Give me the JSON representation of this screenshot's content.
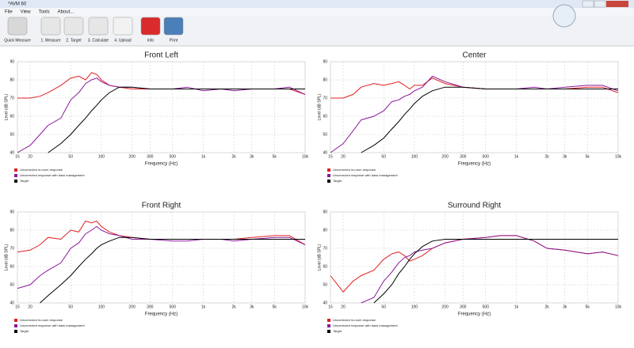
{
  "window": {
    "title": "*AVM 60"
  },
  "menu": [
    "File",
    "View",
    "Tools",
    "About..."
  ],
  "toolbar": [
    "Quick Measure",
    "1. Measure",
    "2. Target",
    "3. Calculate",
    "4. Upload",
    "Info",
    "Print"
  ],
  "chart_data": [
    {
      "type": "line",
      "title": "Front Left",
      "xlabel": "Frequency (Hz)",
      "ylabel": "Level (dB SPL)",
      "log_x": true,
      "grid": true,
      "xlim": [
        15,
        10000
      ],
      "xticks": [
        15,
        20,
        50,
        100,
        200,
        300,
        500,
        {
          "value": 1000,
          "label": "1k"
        },
        {
          "value": 2000,
          "label": "2k"
        },
        {
          "value": 3000,
          "label": "3k"
        },
        {
          "value": 5000,
          "label": "5k"
        },
        {
          "value": 10000,
          "label": "10k"
        }
      ],
      "ylim": [
        40,
        90
      ],
      "yticks": [
        40,
        50,
        60,
        70,
        80,
        90
      ],
      "x": [
        15,
        20,
        25,
        30,
        40,
        50,
        60,
        70,
        80,
        90,
        100,
        120,
        150,
        200,
        300,
        500,
        700,
        1000,
        1500,
        2000,
        3000,
        5000,
        7000,
        10000
      ],
      "series": [
        {
          "name": "Uncorrected in-room response",
          "color": "#e02020",
          "values": [
            70,
            70,
            71,
            73,
            77,
            81,
            82,
            80,
            84,
            83,
            80,
            77,
            76,
            75,
            75,
            75,
            75,
            75,
            75,
            75,
            75,
            75,
            75,
            72
          ]
        },
        {
          "name": "Uncorrected response with bass management",
          "color": "#8a1a9a",
          "values": [
            40,
            44,
            50,
            55,
            59,
            69,
            73,
            78,
            80,
            81,
            79,
            77,
            76,
            76,
            75,
            75,
            76,
            74,
            75,
            74,
            75,
            75,
            76,
            72
          ]
        },
        {
          "name": "Target",
          "color": "#000000",
          "values": [
            null,
            null,
            null,
            40,
            45,
            50,
            55,
            59,
            63,
            66,
            69,
            73,
            76,
            76,
            75,
            75,
            75,
            75,
            75,
            75,
            75,
            75,
            75,
            75
          ]
        }
      ]
    },
    {
      "type": "line",
      "title": "Center",
      "xlabel": "Frequency (Hz)",
      "ylabel": "Level (dB SPL)",
      "log_x": true,
      "grid": true,
      "xlim": [
        15,
        10000
      ],
      "xticks": [
        15,
        20,
        50,
        100,
        200,
        300,
        500,
        {
          "value": 1000,
          "label": "1k"
        },
        {
          "value": 2000,
          "label": "2k"
        },
        {
          "value": 3000,
          "label": "3k"
        },
        {
          "value": 5000,
          "label": "5k"
        },
        {
          "value": 10000,
          "label": "10k"
        }
      ],
      "ylim": [
        40,
        90
      ],
      "yticks": [
        40,
        50,
        60,
        70,
        80,
        90
      ],
      "x": [
        15,
        20,
        25,
        30,
        40,
        50,
        60,
        70,
        80,
        90,
        100,
        120,
        150,
        200,
        300,
        500,
        700,
        1000,
        1500,
        2000,
        3000,
        5000,
        7000,
        10000
      ],
      "series": [
        {
          "name": "Uncorrected in-room response",
          "color": "#e02020",
          "values": [
            70,
            70,
            72,
            76,
            78,
            77,
            78,
            79,
            77,
            75,
            77,
            77,
            81,
            78,
            76,
            75,
            75,
            75,
            75,
            75,
            75,
            76,
            76,
            73
          ]
        },
        {
          "name": "Uncorrected response with bass management",
          "color": "#8a1a9a",
          "values": [
            40,
            45,
            52,
            58,
            60,
            63,
            68,
            69,
            71,
            72,
            74,
            76,
            82,
            79,
            76,
            75,
            75,
            75,
            76,
            75,
            76,
            77,
            77,
            74
          ]
        },
        {
          "name": "Target",
          "color": "#000000",
          "values": [
            null,
            null,
            null,
            40,
            44,
            48,
            53,
            57,
            61,
            64,
            67,
            71,
            74,
            76,
            76,
            75,
            75,
            75,
            75,
            75,
            75,
            75,
            75,
            75
          ]
        }
      ]
    },
    {
      "type": "line",
      "title": "Front Right",
      "xlabel": "Frequency (Hz)",
      "ylabel": "Level (dB SPL)",
      "log_x": true,
      "grid": true,
      "xlim": [
        15,
        10000
      ],
      "xticks": [
        15,
        20,
        50,
        100,
        200,
        300,
        500,
        {
          "value": 1000,
          "label": "1k"
        },
        {
          "value": 2000,
          "label": "2k"
        },
        {
          "value": 3000,
          "label": "3k"
        },
        {
          "value": 5000,
          "label": "5k"
        },
        {
          "value": 10000,
          "label": "10k"
        }
      ],
      "ylim": [
        40,
        90
      ],
      "yticks": [
        40,
        50,
        60,
        70,
        80,
        90
      ],
      "x": [
        15,
        20,
        25,
        30,
        40,
        50,
        60,
        70,
        80,
        90,
        100,
        120,
        150,
        200,
        300,
        500,
        700,
        1000,
        1500,
        2000,
        3000,
        5000,
        7000,
        10000
      ],
      "series": [
        {
          "name": "Uncorrected in-room response",
          "color": "#e02020",
          "values": [
            68,
            69,
            72,
            76,
            75,
            80,
            79,
            85,
            84,
            85,
            82,
            79,
            77,
            76,
            75,
            75,
            75,
            75,
            75,
            75,
            76,
            77,
            77,
            72
          ]
        },
        {
          "name": "Uncorrected response with bass management",
          "color": "#8a1a9a",
          "values": [
            48,
            50,
            55,
            58,
            62,
            70,
            73,
            78,
            80,
            82,
            80,
            78,
            77,
            75,
            75,
            74,
            74,
            75,
            75,
            74,
            75,
            76,
            76,
            72
          ]
        },
        {
          "name": "Target",
          "color": "#000000",
          "values": [
            null,
            null,
            40,
            44,
            50,
            55,
            60,
            64,
            67,
            70,
            72,
            74,
            76,
            76,
            75,
            75,
            75,
            75,
            75,
            75,
            75,
            75,
            75,
            75
          ]
        }
      ]
    },
    {
      "type": "line",
      "title": "Surround Right",
      "xlabel": "Frequency (Hz)",
      "ylabel": "Level (dB SPL)",
      "log_x": true,
      "grid": true,
      "xlim": [
        15,
        10000
      ],
      "xticks": [
        15,
        20,
        50,
        100,
        200,
        300,
        500,
        {
          "value": 1000,
          "label": "1k"
        },
        {
          "value": 2000,
          "label": "2k"
        },
        {
          "value": 3000,
          "label": "3k"
        },
        {
          "value": 5000,
          "label": "5k"
        },
        {
          "value": 10000,
          "label": "10k"
        }
      ],
      "ylim": [
        40,
        90
      ],
      "yticks": [
        40,
        50,
        60,
        70,
        80,
        90
      ],
      "x": [
        15,
        20,
        25,
        30,
        40,
        50,
        60,
        70,
        80,
        90,
        100,
        120,
        150,
        200,
        300,
        500,
        700,
        1000,
        1500,
        2000,
        3000,
        5000,
        7000,
        10000
      ],
      "series": [
        {
          "name": "Uncorrected in-room response",
          "color": "#e02020",
          "values": [
            55,
            46,
            52,
            55,
            58,
            64,
            67,
            68,
            66,
            63,
            64,
            66,
            70,
            73,
            75,
            76,
            77,
            77,
            74,
            70,
            69,
            67,
            68,
            66
          ]
        },
        {
          "name": "Uncorrected response with bass management",
          "color": "#8a1a9a",
          "values": [
            null,
            null,
            null,
            40,
            43,
            52,
            57,
            62,
            65,
            66,
            68,
            69,
            70,
            73,
            75,
            76,
            77,
            77,
            74,
            70,
            69,
            67,
            68,
            66
          ]
        },
        {
          "name": "Target",
          "color": "#000000",
          "values": [
            null,
            null,
            null,
            null,
            40,
            45,
            50,
            56,
            60,
            64,
            67,
            71,
            74,
            75,
            75,
            75,
            75,
            75,
            75,
            75,
            75,
            75,
            75,
            75
          ]
        }
      ]
    }
  ]
}
